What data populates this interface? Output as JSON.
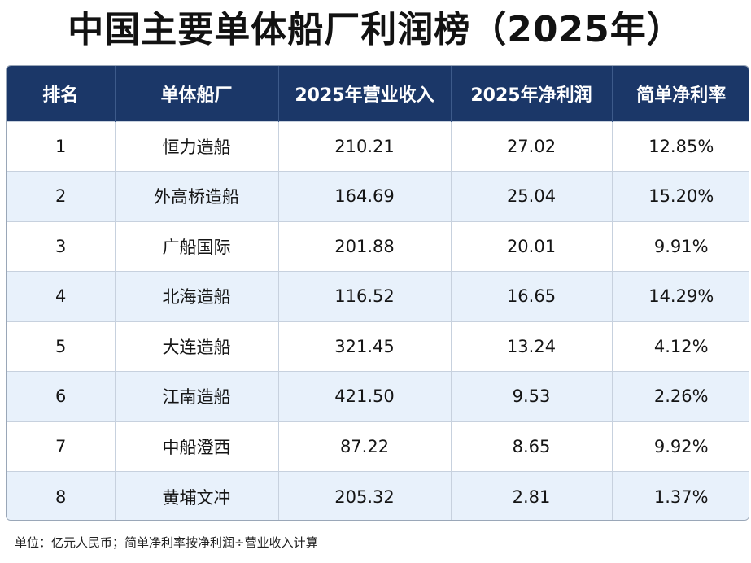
{
  "title": "中国主要单体船厂利润榜（2025年）",
  "table": {
    "headers": [
      "排名",
      "单体船厂",
      "2025年营业收入",
      "2025年净利润",
      "简单净利率"
    ],
    "rows": [
      [
        "1",
        "恒力造船",
        "210.21",
        "27.02",
        "12.85%"
      ],
      [
        "2",
        "外高桥造船",
        "164.69",
        "25.04",
        "15.20%"
      ],
      [
        "3",
        "广船国际",
        "201.88",
        "20.01",
        "9.91%"
      ],
      [
        "4",
        "北海造船",
        "116.52",
        "16.65",
        "14.29%"
      ],
      [
        "5",
        "大连造船",
        "321.45",
        "13.24",
        "4.12%"
      ],
      [
        "6",
        "江南造船",
        "421.50",
        "9.53",
        "2.26%"
      ],
      [
        "7",
        "中船澄西",
        "87.22",
        "8.65",
        "9.92%"
      ],
      [
        "8",
        "黄埔文冲",
        "205.32",
        "2.81",
        "1.37%"
      ]
    ]
  },
  "note": "单位：亿元人民币；简单净利率按净利润÷营业收入计算",
  "colors": {
    "header_bg": "#1b3768",
    "header_text": "#ffffff",
    "stripe": "#e8f1fb"
  }
}
